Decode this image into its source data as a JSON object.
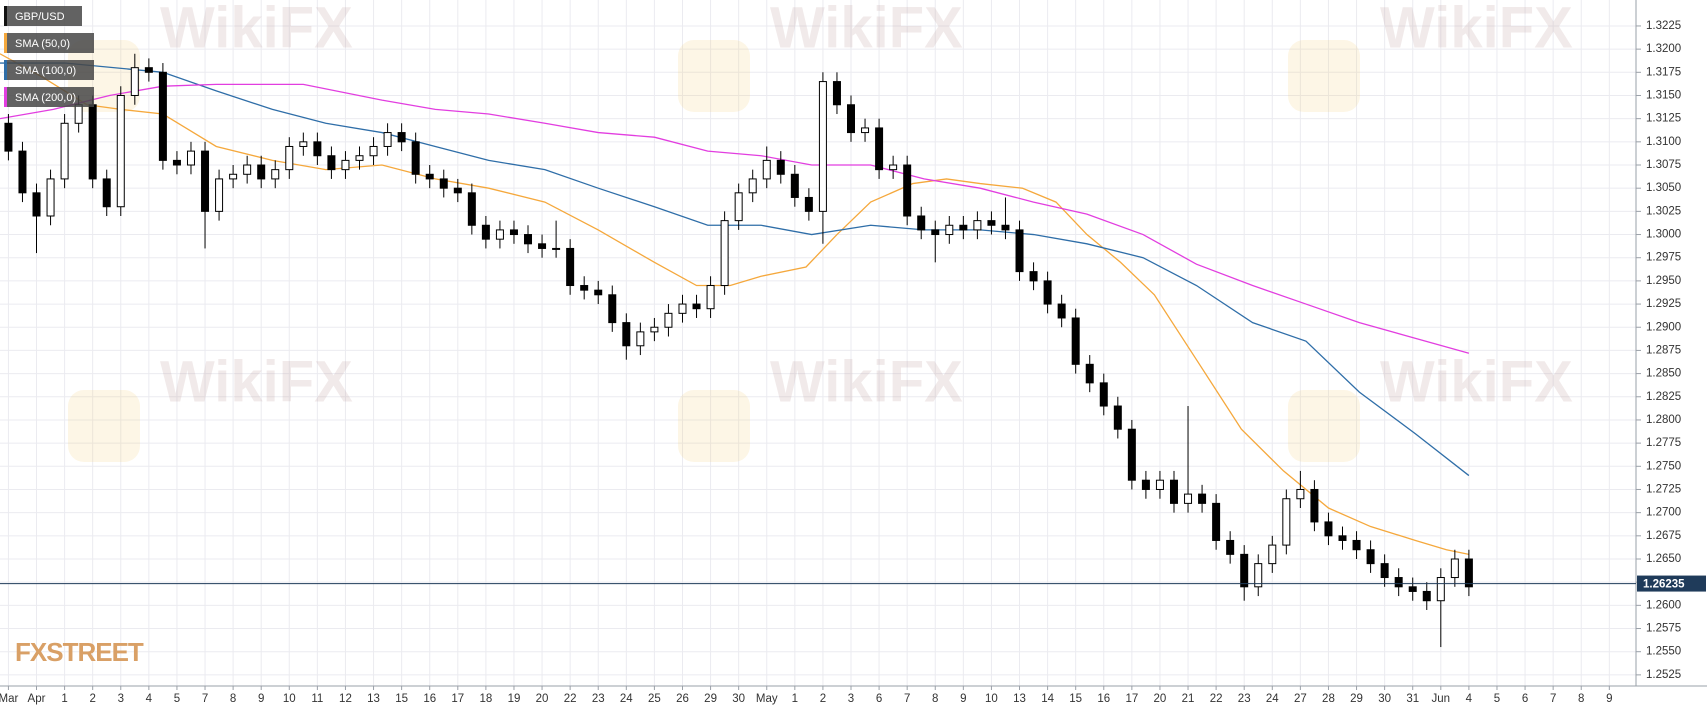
{
  "chart_data": {
    "type": "candlestick",
    "series": [
      {
        "name": "GBP/USD",
        "type": "candlestick",
        "color": "#000000",
        "x": [
          0,
          0.5,
          1,
          1.5,
          2,
          2.5,
          3,
          3.5,
          4,
          4.5,
          5,
          5.5,
          6,
          6.5,
          7,
          7.5,
          8,
          8.5,
          9,
          9.5,
          10,
          10.5,
          11,
          11.5,
          12,
          12.5,
          13,
          13.5,
          14,
          14.5,
          15,
          15.5,
          16,
          16.5,
          17,
          17.5,
          18,
          18.5,
          19,
          19.5,
          20,
          20.5,
          21,
          21.5,
          22,
          22.5,
          23,
          23.5,
          24,
          24.5,
          25,
          25.5,
          26,
          26.5,
          27,
          27.5,
          28,
          28.5,
          29,
          29.5,
          30,
          30.5,
          31,
          31.5,
          32,
          32.5,
          33,
          33.5,
          34,
          34.5,
          35,
          35.5,
          36,
          36.5,
          37,
          37.5,
          38,
          38.5,
          39,
          39.5,
          40,
          40.5,
          41,
          41.5,
          42,
          42.5,
          43,
          43.5,
          44,
          44.5,
          45,
          45.5,
          46,
          46.5,
          47,
          47.5,
          48,
          48.5,
          49,
          49.5,
          50,
          50.5,
          51,
          51.5,
          52
        ],
        "open": [
          1.312,
          1.309,
          1.3045,
          1.302,
          1.306,
          1.312,
          1.314,
          1.306,
          1.303,
          1.315,
          1.318,
          1.3175,
          1.308,
          1.3075,
          1.309,
          1.3025,
          1.306,
          1.3065,
          1.3075,
          1.306,
          1.307,
          1.3095,
          1.31,
          1.3085,
          1.307,
          1.308,
          1.3085,
          1.3095,
          1.311,
          1.31,
          1.3065,
          1.306,
          1.305,
          1.3045,
          1.301,
          1.2995,
          1.3005,
          1.3,
          1.299,
          1.2985,
          1.2985,
          1.2945,
          1.294,
          1.2935,
          1.2905,
          1.288,
          1.2895,
          1.29,
          1.2915,
          1.2925,
          1.292,
          1.2945,
          1.3015,
          1.3045,
          1.306,
          1.308,
          1.3065,
          1.304,
          1.3025,
          1.3165,
          1.314,
          1.311,
          1.3115,
          1.307,
          1.3075,
          1.302,
          1.3005,
          1.3,
          1.301,
          1.3005,
          1.3015,
          1.301,
          1.3005,
          1.296,
          1.295,
          1.2925,
          1.291,
          1.286,
          1.284,
          1.2815,
          1.279,
          1.2735,
          1.2725,
          1.2735,
          1.271,
          1.272,
          1.271,
          1.267,
          1.2655,
          1.262,
          1.2645,
          1.2665,
          1.2715,
          1.2725,
          1.269,
          1.2675,
          1.267,
          1.266,
          1.2645,
          1.263,
          1.262,
          1.2615,
          1.2605,
          1.263,
          1.265
        ],
        "high": [
          1.313,
          1.31,
          1.3055,
          1.307,
          1.313,
          1.315,
          1.315,
          1.307,
          1.316,
          1.3195,
          1.319,
          1.3185,
          1.309,
          1.31,
          1.31,
          1.307,
          1.3075,
          1.3085,
          1.3085,
          1.308,
          1.3105,
          1.311,
          1.311,
          1.3095,
          1.309,
          1.3095,
          1.3105,
          1.312,
          1.312,
          1.311,
          1.3075,
          1.307,
          1.306,
          1.3055,
          1.302,
          1.3015,
          1.3015,
          1.301,
          1.3,
          1.3015,
          1.2995,
          1.2955,
          1.295,
          1.2945,
          1.2915,
          1.2905,
          1.291,
          1.2925,
          1.2935,
          1.2935,
          1.2955,
          1.3025,
          1.3055,
          1.307,
          1.3095,
          1.309,
          1.3075,
          1.305,
          1.3175,
          1.3175,
          1.315,
          1.3125,
          1.3125,
          1.3085,
          1.3085,
          1.303,
          1.3015,
          1.302,
          1.302,
          1.3025,
          1.3025,
          1.304,
          1.3015,
          1.297,
          1.296,
          1.2935,
          1.292,
          1.287,
          1.285,
          1.2825,
          1.28,
          1.2745,
          1.2745,
          1.2745,
          1.2815,
          1.273,
          1.272,
          1.268,
          1.2665,
          1.2655,
          1.2675,
          1.2725,
          1.2745,
          1.2735,
          1.27,
          1.2685,
          1.268,
          1.267,
          1.2655,
          1.264,
          1.263,
          1.2625,
          1.264,
          1.266,
          1.266
        ],
        "low": [
          1.308,
          1.3035,
          1.298,
          1.301,
          1.305,
          1.311,
          1.305,
          1.302,
          1.302,
          1.314,
          1.3165,
          1.307,
          1.3065,
          1.3065,
          1.2985,
          1.3015,
          1.305,
          1.3055,
          1.305,
          1.305,
          1.306,
          1.3085,
          1.3075,
          1.306,
          1.306,
          1.307,
          1.3075,
          1.3085,
          1.309,
          1.3055,
          1.305,
          1.304,
          1.3035,
          1.3,
          1.2985,
          1.2985,
          1.299,
          1.298,
          1.2975,
          1.2975,
          1.2935,
          1.293,
          1.2925,
          1.2895,
          1.2865,
          1.287,
          1.2885,
          1.289,
          1.2905,
          1.291,
          1.291,
          1.2935,
          1.3005,
          1.3035,
          1.305,
          1.3055,
          1.303,
          1.3015,
          1.299,
          1.313,
          1.31,
          1.31,
          1.306,
          1.306,
          1.301,
          1.2995,
          1.297,
          1.299,
          1.2995,
          1.2995,
          1.3,
          1.2995,
          1.295,
          1.294,
          1.2915,
          1.29,
          1.285,
          1.283,
          1.2805,
          1.278,
          1.2725,
          1.2715,
          1.2715,
          1.27,
          1.27,
          1.27,
          1.266,
          1.2645,
          1.2605,
          1.261,
          1.2635,
          1.2655,
          1.2705,
          1.268,
          1.2665,
          1.266,
          1.265,
          1.2635,
          1.262,
          1.261,
          1.2605,
          1.2595,
          1.2555,
          1.262,
          1.261
        ],
        "close": [
          1.309,
          1.3045,
          1.302,
          1.306,
          1.312,
          1.314,
          1.306,
          1.303,
          1.315,
          1.318,
          1.3175,
          1.308,
          1.3075,
          1.309,
          1.3025,
          1.306,
          1.3065,
          1.3075,
          1.306,
          1.307,
          1.3095,
          1.31,
          1.3085,
          1.307,
          1.308,
          1.3085,
          1.3095,
          1.311,
          1.31,
          1.3065,
          1.306,
          1.305,
          1.3045,
          1.301,
          1.2995,
          1.3005,
          1.3,
          1.299,
          1.2985,
          1.2985,
          1.2945,
          1.294,
          1.2935,
          1.2905,
          1.288,
          1.2895,
          1.29,
          1.2915,
          1.2925,
          1.292,
          1.2945,
          1.3015,
          1.3045,
          1.306,
          1.308,
          1.3065,
          1.304,
          1.3025,
          1.3165,
          1.314,
          1.311,
          1.3115,
          1.307,
          1.3075,
          1.302,
          1.3005,
          1.3,
          1.301,
          1.3005,
          1.3015,
          1.301,
          1.3005,
          1.296,
          1.295,
          1.2925,
          1.291,
          1.286,
          1.284,
          1.2815,
          1.279,
          1.2735,
          1.2725,
          1.2735,
          1.271,
          1.272,
          1.271,
          1.267,
          1.2655,
          1.262,
          1.2645,
          1.2665,
          1.2715,
          1.2725,
          1.269,
          1.2675,
          1.267,
          1.266,
          1.2645,
          1.263,
          1.262,
          1.2615,
          1.2605,
          1.263,
          1.265,
          1.262
        ]
      },
      {
        "name": "SMA (50,0)",
        "type": "line",
        "color": "#f5a83c",
        "x": [
          -0.3,
          1.2,
          2.8,
          4.0,
          5.5,
          7.4,
          9.4,
          11.3,
          13.3,
          15.2,
          17.1,
          19.1,
          21.0,
          23.0,
          24.5,
          25.7,
          26.8,
          28.4,
          29.5,
          30.7,
          32.2,
          33.4,
          34.6,
          36.1,
          37.3,
          38.4,
          39.6,
          40.8,
          42.3,
          43.9,
          45.4,
          47.0,
          48.5,
          50.1,
          51.2,
          52.0
        ],
        "values": [
          1.3195,
          1.317,
          1.314,
          1.3135,
          1.313,
          1.3095,
          1.308,
          1.307,
          1.3075,
          1.306,
          1.305,
          1.3035,
          1.3005,
          1.297,
          1.2945,
          1.2945,
          1.2955,
          1.2965,
          1.3,
          1.3035,
          1.3055,
          1.306,
          1.3055,
          1.305,
          1.3035,
          1.3,
          1.297,
          1.2935,
          1.2865,
          1.279,
          1.2745,
          1.2705,
          1.2685,
          1.267,
          1.266,
          1.2655
        ]
      },
      {
        "name": "SMA (100,0)",
        "type": "line",
        "color": "#2f6ea8",
        "x": [
          -0.3,
          2.0,
          5.5,
          7.4,
          9.4,
          11.3,
          13.3,
          15.2,
          17.1,
          19.1,
          21.0,
          23.0,
          24.9,
          26.8,
          28.6,
          30.7,
          32.6,
          34.6,
          36.5,
          38.4,
          40.4,
          42.3,
          44.3,
          46.2,
          48.1,
          50.1,
          52.0
        ],
        "values": [
          1.3185,
          1.3185,
          1.3175,
          1.3155,
          1.3135,
          1.312,
          1.311,
          1.3095,
          1.308,
          1.307,
          1.305,
          1.303,
          1.301,
          1.301,
          1.3,
          1.301,
          1.3005,
          1.3005,
          1.3,
          1.299,
          1.2975,
          1.2945,
          1.2905,
          1.2885,
          1.283,
          1.2785,
          1.274
        ]
      },
      {
        "name": "SMA (200,0)",
        "type": "line",
        "color": "#e23ee0",
        "x": [
          -0.3,
          1.6,
          3.6,
          5.5,
          7.4,
          10.5,
          13.3,
          15.2,
          17.1,
          19.1,
          21.0,
          23.0,
          24.9,
          26.8,
          28.6,
          30.7,
          32.6,
          34.6,
          36.5,
          38.4,
          40.4,
          42.3,
          44.3,
          46.2,
          48.1,
          50.1,
          52.0
        ],
        "values": [
          1.3125,
          1.3135,
          1.315,
          1.316,
          1.3162,
          1.3162,
          1.3145,
          1.3135,
          1.313,
          1.312,
          1.311,
          1.3105,
          1.309,
          1.3085,
          1.3075,
          1.3075,
          1.306,
          1.305,
          1.3035,
          1.3022,
          1.3,
          1.2968,
          1.2945,
          1.2925,
          1.2905,
          1.2888,
          1.2872
        ]
      }
    ],
    "last_price": 1.26235,
    "xlim": [
      -0.3,
      57.95
    ],
    "xticks": [
      {
        "value": 0,
        "label": "Mar"
      },
      {
        "value": 1,
        "label": "Apr"
      },
      {
        "value": 2,
        "label": "1"
      },
      {
        "value": 3,
        "label": "2"
      },
      {
        "value": 4,
        "label": "3"
      },
      {
        "value": 5,
        "label": "4"
      },
      {
        "value": 6,
        "label": "5"
      },
      {
        "value": 7,
        "label": "7"
      },
      {
        "value": 8,
        "label": "8"
      },
      {
        "value": 9,
        "label": "9"
      },
      {
        "value": 10,
        "label": "10"
      },
      {
        "value": 11,
        "label": "11"
      },
      {
        "value": 12,
        "label": "12"
      },
      {
        "value": 13,
        "label": "13"
      },
      {
        "value": 14,
        "label": "15"
      },
      {
        "value": 15,
        "label": "16"
      },
      {
        "value": 16,
        "label": "17"
      },
      {
        "value": 17,
        "label": "18"
      },
      {
        "value": 18,
        "label": "19"
      },
      {
        "value": 19,
        "label": "20"
      },
      {
        "value": 20,
        "label": "22"
      },
      {
        "value": 21,
        "label": "23"
      },
      {
        "value": 22,
        "label": "24"
      },
      {
        "value": 23,
        "label": "25"
      },
      {
        "value": 24,
        "label": "26"
      },
      {
        "value": 25,
        "label": "29"
      },
      {
        "value": 26,
        "label": "30"
      },
      {
        "value": 27,
        "label": "May"
      },
      {
        "value": 28,
        "label": "1"
      },
      {
        "value": 29,
        "label": "2"
      },
      {
        "value": 30,
        "label": "3"
      },
      {
        "value": 31,
        "label": "6"
      },
      {
        "value": 32,
        "label": "7"
      },
      {
        "value": 33,
        "label": "8"
      },
      {
        "value": 34,
        "label": "9"
      },
      {
        "value": 35,
        "label": "10"
      },
      {
        "value": 36,
        "label": "13"
      },
      {
        "value": 37,
        "label": "14"
      },
      {
        "value": 38,
        "label": "15"
      },
      {
        "value": 39,
        "label": "16"
      },
      {
        "value": 40,
        "label": "17"
      },
      {
        "value": 41,
        "label": "20"
      },
      {
        "value": 42,
        "label": "21"
      },
      {
        "value": 43,
        "label": "22"
      },
      {
        "value": 44,
        "label": "23"
      },
      {
        "value": 45,
        "label": "24"
      },
      {
        "value": 46,
        "label": "27"
      },
      {
        "value": 47,
        "label": "28"
      },
      {
        "value": 48,
        "label": "29"
      },
      {
        "value": 49,
        "label": "30"
      },
      {
        "value": 50,
        "label": "31"
      },
      {
        "value": 51,
        "label": "Jun"
      },
      {
        "value": 52,
        "label": "4"
      },
      {
        "value": 53,
        "label": "5"
      },
      {
        "value": 54,
        "label": "6"
      },
      {
        "value": 55,
        "label": "7"
      },
      {
        "value": 56,
        "label": "8"
      },
      {
        "value": 57,
        "label": "9"
      }
    ],
    "ylim": [
      1.2513,
      1.3253
    ],
    "yticks": [
      1.2525,
      {
        "value": 1.255,
        "label": "1.2550"
      },
      1.2575,
      {
        "value": 1.26,
        "label": "1.2600"
      },
      1.2625,
      {
        "value": 1.265,
        "label": "1.2650"
      },
      1.2675,
      {
        "value": 1.27,
        "label": "1.2700"
      },
      1.2725,
      {
        "value": 1.275,
        "label": "1.2750"
      },
      1.2775,
      {
        "value": 1.28,
        "label": "1.2800"
      },
      1.2825,
      {
        "value": 1.285,
        "label": "1.2850"
      },
      1.2875,
      {
        "value": 1.29,
        "label": "1.2900"
      },
      1.2925,
      {
        "value": 1.295,
        "label": "1.2950"
      },
      1.2975,
      {
        "value": 1.3,
        "label": "1.3000"
      },
      1.3025,
      {
        "value": 1.305,
        "label": "1.3050"
      },
      1.3075,
      {
        "value": 1.31,
        "label": "1.3100"
      },
      1.3125,
      {
        "value": 1.315,
        "label": "1.3150"
      },
      1.3175,
      {
        "value": 1.32,
        "label": "1.3200"
      },
      1.3225
    ],
    "grid": true
  },
  "watermark": "WikiFX",
  "logo": "FXSTREET"
}
